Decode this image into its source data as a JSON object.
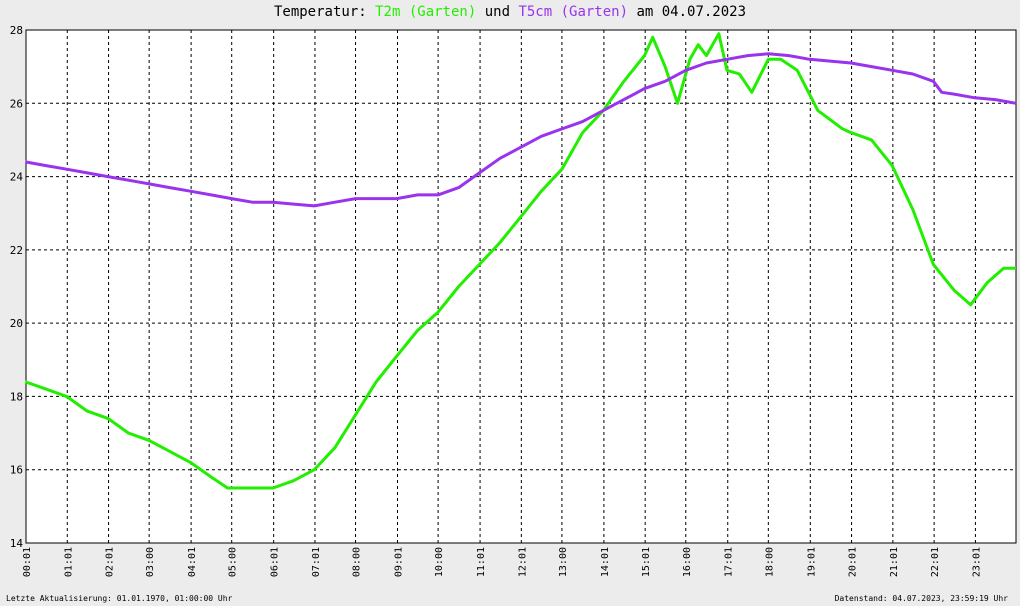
{
  "title": {
    "prefix": "Temperatur: ",
    "series1": "T2m (Garten)",
    "middle": " und ",
    "series2": "T5cm (Garten)",
    "suffix": " am 04.07.2023"
  },
  "footer": {
    "left": "Letzte Aktualisierung: 01.01.1970, 01:00:00 Uhr",
    "right": "Datenstand: 04.07.2023, 23:59:19 Uhr"
  },
  "colors": {
    "series1": "#22ee00",
    "series2": "#9933ee",
    "grid": "#000000",
    "background": "#ffffff"
  },
  "chart_data": {
    "type": "line",
    "title": "Temperatur: T2m (Garten) und T5cm (Garten) am 04.07.2023",
    "xlim": [
      0.0167,
      24
    ],
    "ylim": [
      14,
      28
    ],
    "grid": true,
    "x_ticks": [
      {
        "label": "00:01",
        "x": 0.0167
      },
      {
        "label": "01:01",
        "x": 1.0167
      },
      {
        "label": "02:01",
        "x": 2.0167
      },
      {
        "label": "03:00",
        "x": 3.0
      },
      {
        "label": "04:01",
        "x": 4.0167
      },
      {
        "label": "05:00",
        "x": 5.0
      },
      {
        "label": "06:01",
        "x": 6.0167
      },
      {
        "label": "07:01",
        "x": 7.0167
      },
      {
        "label": "08:00",
        "x": 8.0
      },
      {
        "label": "09:01",
        "x": 9.0167
      },
      {
        "label": "10:00",
        "x": 10.0
      },
      {
        "label": "11:01",
        "x": 11.0167
      },
      {
        "label": "12:01",
        "x": 12.0167
      },
      {
        "label": "13:00",
        "x": 13.0
      },
      {
        "label": "14:01",
        "x": 14.0167
      },
      {
        "label": "15:01",
        "x": 15.0167
      },
      {
        "label": "16:00",
        "x": 16.0
      },
      {
        "label": "17:01",
        "x": 17.0167
      },
      {
        "label": "18:00",
        "x": 18.0
      },
      {
        "label": "19:01",
        "x": 19.0167
      },
      {
        "label": "20:01",
        "x": 20.0167
      },
      {
        "label": "21:01",
        "x": 21.0167
      },
      {
        "label": "22:01",
        "x": 22.0167
      },
      {
        "label": "23:01",
        "x": 23.0167
      }
    ],
    "y_ticks": [
      14,
      16,
      18,
      20,
      22,
      24,
      26,
      28
    ],
    "series": [
      {
        "name": "T2m (Garten)",
        "color": "#22ee00",
        "points": [
          [
            0,
            18.4
          ],
          [
            0.5,
            18.2
          ],
          [
            1,
            18.0
          ],
          [
            1.5,
            17.6
          ],
          [
            2,
            17.4
          ],
          [
            2.5,
            17.0
          ],
          [
            3,
            16.8
          ],
          [
            3.5,
            16.5
          ],
          [
            4,
            16.2
          ],
          [
            4.5,
            15.8
          ],
          [
            4.9,
            15.5
          ],
          [
            5.5,
            15.5
          ],
          [
            6,
            15.5
          ],
          [
            6.5,
            15.7
          ],
          [
            7,
            16.0
          ],
          [
            7.5,
            16.6
          ],
          [
            8,
            17.5
          ],
          [
            8.5,
            18.4
          ],
          [
            9,
            19.1
          ],
          [
            9.5,
            19.8
          ],
          [
            10,
            20.3
          ],
          [
            10.5,
            21.0
          ],
          [
            11,
            21.6
          ],
          [
            11.5,
            22.2
          ],
          [
            12,
            22.9
          ],
          [
            12.5,
            23.6
          ],
          [
            13,
            24.2
          ],
          [
            13.5,
            25.2
          ],
          [
            14,
            25.8
          ],
          [
            14.5,
            26.6
          ],
          [
            15,
            27.3
          ],
          [
            15.2,
            27.8
          ],
          [
            15.5,
            27.0
          ],
          [
            15.8,
            26.0
          ],
          [
            16.1,
            27.2
          ],
          [
            16.3,
            27.6
          ],
          [
            16.5,
            27.3
          ],
          [
            16.8,
            27.9
          ],
          [
            17,
            26.9
          ],
          [
            17.3,
            26.8
          ],
          [
            17.6,
            26.3
          ],
          [
            18,
            27.2
          ],
          [
            18.3,
            27.2
          ],
          [
            18.7,
            26.9
          ],
          [
            19.2,
            25.8
          ],
          [
            19.8,
            25.3
          ],
          [
            20,
            25.2
          ],
          [
            20.5,
            25.0
          ],
          [
            21,
            24.3
          ],
          [
            21.5,
            23.1
          ],
          [
            22,
            21.6
          ],
          [
            22.5,
            20.9
          ],
          [
            22.9,
            20.5
          ],
          [
            23.3,
            21.1
          ],
          [
            23.7,
            21.5
          ],
          [
            24,
            21.5
          ]
        ]
      },
      {
        "name": "T5cm (Garten)",
        "color": "#9933ee",
        "points": [
          [
            0,
            24.4
          ],
          [
            0.5,
            24.3
          ],
          [
            1,
            24.2
          ],
          [
            1.5,
            24.1
          ],
          [
            2,
            24.0
          ],
          [
            2.5,
            23.9
          ],
          [
            3,
            23.8
          ],
          [
            3.5,
            23.7
          ],
          [
            4,
            23.6
          ],
          [
            4.5,
            23.5
          ],
          [
            5,
            23.4
          ],
          [
            5.5,
            23.3
          ],
          [
            6,
            23.3
          ],
          [
            6.5,
            23.25
          ],
          [
            7,
            23.2
          ],
          [
            7.5,
            23.3
          ],
          [
            8,
            23.4
          ],
          [
            8.5,
            23.4
          ],
          [
            9,
            23.4
          ],
          [
            9.5,
            23.5
          ],
          [
            10,
            23.5
          ],
          [
            10.5,
            23.7
          ],
          [
            11,
            24.1
          ],
          [
            11.5,
            24.5
          ],
          [
            12,
            24.8
          ],
          [
            12.5,
            25.1
          ],
          [
            13,
            25.3
          ],
          [
            13.5,
            25.5
          ],
          [
            14,
            25.8
          ],
          [
            14.5,
            26.1
          ],
          [
            15,
            26.4
          ],
          [
            15.5,
            26.6
          ],
          [
            16,
            26.9
          ],
          [
            16.5,
            27.1
          ],
          [
            17,
            27.2
          ],
          [
            17.5,
            27.3
          ],
          [
            18,
            27.35
          ],
          [
            18.5,
            27.3
          ],
          [
            19,
            27.2
          ],
          [
            19.5,
            27.15
          ],
          [
            20,
            27.1
          ],
          [
            20.5,
            27.0
          ],
          [
            21,
            26.9
          ],
          [
            21.5,
            26.8
          ],
          [
            22,
            26.6
          ],
          [
            22.2,
            26.3
          ],
          [
            22.5,
            26.25
          ],
          [
            23,
            26.15
          ],
          [
            23.5,
            26.1
          ],
          [
            24,
            26.0
          ]
        ]
      }
    ]
  }
}
